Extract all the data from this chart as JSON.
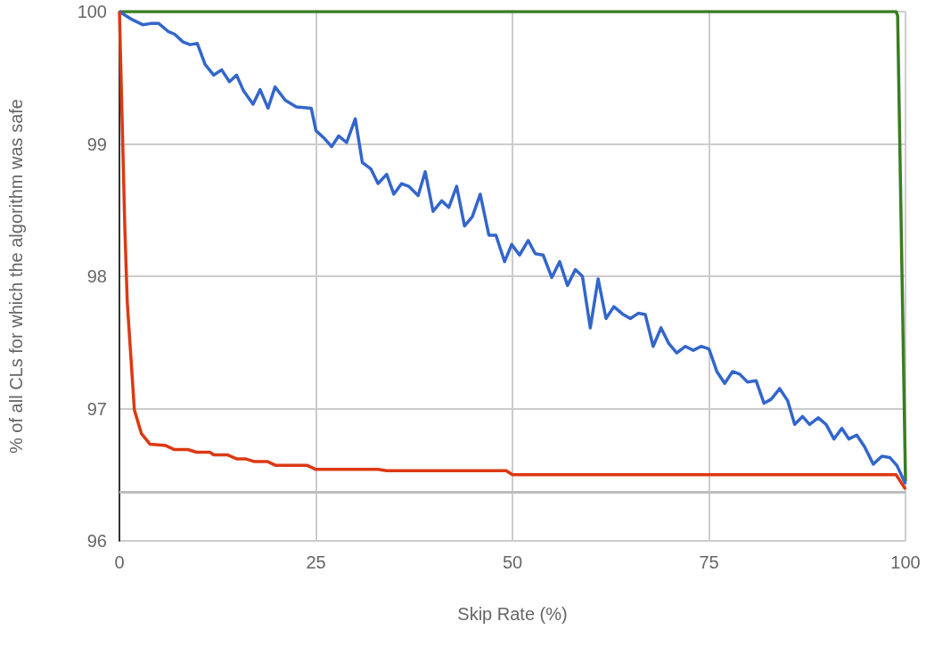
{
  "chart_data": {
    "type": "line",
    "xlabel": "Skip Rate (%)",
    "ylabel": "% of all CLs for which the algorithm was safe",
    "xlim": [
      0,
      100
    ],
    "xticks": [
      0,
      25,
      50,
      75,
      100
    ],
    "ylim": [
      96,
      100
    ],
    "yticks": [
      96,
      97,
      98,
      99,
      100
    ],
    "grid": true,
    "marker": "none",
    "line_style": "solid",
    "series": [
      {
        "color": "#3a7d22",
        "x": [
          0,
          98.8,
          99,
          100
        ],
        "values": [
          100,
          100,
          99.97,
          96.45
        ]
      },
      {
        "color": "#3366cc",
        "x": [
          0,
          1.6,
          3,
          4,
          5,
          6.2,
          7,
          8.1,
          9,
          9.9,
          10.9,
          12,
          13,
          14,
          14.9,
          15.8,
          17,
          17.9,
          18.9,
          19.8,
          21.1,
          22.5,
          24.4,
          25,
          26.1,
          27,
          27.9,
          28.9,
          30,
          30.9,
          32,
          32.9,
          34,
          34.9,
          35.9,
          36.8,
          38,
          38.9,
          39.9,
          41,
          41.9,
          42.9,
          43.9,
          44.9,
          45.9,
          47,
          47.9,
          49,
          49.9,
          50.9,
          52,
          52.9,
          53.9,
          55,
          56,
          57,
          58,
          58.9,
          59.9,
          60.9,
          61.9,
          62.9,
          64.1,
          65,
          66,
          66.9,
          67.9,
          68.9,
          69.9,
          70.9,
          72,
          73,
          74,
          75,
          76,
          77,
          78,
          78.9,
          79.9,
          81,
          82,
          82.9,
          84,
          85,
          85.9,
          86.9,
          87.8,
          88.9,
          89.9,
          90.9,
          91.9,
          92.8,
          93.8,
          94.8,
          95.9,
          97,
          98,
          98.9,
          100
        ],
        "values": [
          100,
          99.94,
          99.9,
          99.91,
          99.91,
          99.85,
          99.83,
          99.77,
          99.75,
          99.76,
          99.6,
          99.52,
          99.56,
          99.47,
          99.52,
          99.4,
          99.3,
          99.41,
          99.27,
          99.43,
          99.33,
          99.28,
          99.27,
          99.1,
          99.04,
          98.98,
          99.06,
          99.01,
          99.19,
          98.86,
          98.81,
          98.7,
          98.77,
          98.62,
          98.7,
          98.68,
          98.61,
          98.79,
          98.49,
          98.57,
          98.52,
          98.68,
          98.38,
          98.45,
          98.62,
          98.31,
          98.31,
          98.11,
          98.24,
          98.16,
          98.27,
          98.17,
          98.16,
          97.99,
          98.11,
          97.93,
          98.05,
          98,
          97.61,
          97.98,
          97.68,
          97.77,
          97.71,
          97.68,
          97.72,
          97.71,
          97.47,
          97.61,
          97.49,
          97.42,
          97.47,
          97.44,
          97.47,
          97.45,
          97.28,
          97.19,
          97.28,
          97.26,
          97.2,
          97.21,
          97.04,
          97.07,
          97.15,
          97.06,
          96.88,
          96.94,
          96.88,
          96.93,
          96.88,
          96.77,
          96.85,
          96.77,
          96.8,
          96.71,
          96.58,
          96.64,
          96.63,
          96.57,
          96.43
        ]
      },
      {
        "color": "#dc3912",
        "x": [
          0,
          0.7,
          1,
          1.9,
          2.8,
          3.9,
          5.9,
          7,
          8.7,
          9.8,
          11.5,
          12,
          13.7,
          14.9,
          16,
          17.1,
          18.8,
          19.9,
          23.9,
          25,
          32.9,
          34,
          49.2,
          50,
          98.8,
          100
        ],
        "values": [
          100,
          98.34,
          97.8,
          96.99,
          96.81,
          96.73,
          96.72,
          96.69,
          96.69,
          96.67,
          96.67,
          96.65,
          96.65,
          96.62,
          96.62,
          96.6,
          96.6,
          96.57,
          96.57,
          96.54,
          96.54,
          96.53,
          96.53,
          96.5,
          96.5,
          96.39
        ]
      }
    ],
    "ref_lines": [
      {
        "axis": "y",
        "value": 96.37,
        "color": "#bdbdbd"
      }
    ]
  }
}
